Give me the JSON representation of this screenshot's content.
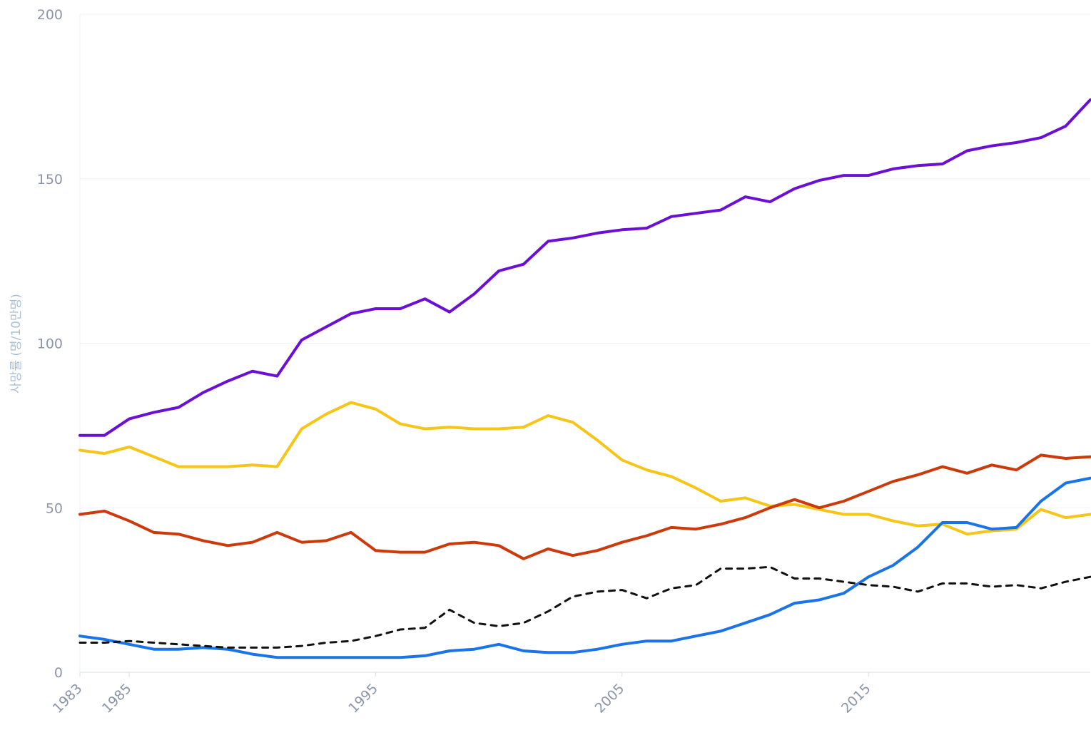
{
  "chart_data": {
    "type": "line",
    "y_label": "사망률 (명/10만명)",
    "x": [
      1983,
      1984,
      1985,
      1986,
      1987,
      1988,
      1989,
      1990,
      1991,
      1992,
      1993,
      1994,
      1995,
      1996,
      1997,
      1998,
      1999,
      2000,
      2001,
      2002,
      2003,
      2004,
      2005,
      2006,
      2007,
      2008,
      2009,
      2010,
      2011,
      2012,
      2013,
      2014,
      2015,
      2016,
      2017,
      2018,
      2019,
      2020,
      2021,
      2022,
      2023,
      2024
    ],
    "xlim": [
      1983,
      2024
    ],
    "xticks": [
      1983,
      1985,
      1995,
      2005,
      2015
    ],
    "ylim": [
      0,
      200
    ],
    "yticks": [
      0,
      50,
      100,
      150,
      200
    ],
    "grid": true,
    "series": [
      {
        "color": "#6a0fd6",
        "dashed": false,
        "values": [
          72,
          72,
          77,
          79,
          80.5,
          85,
          88.5,
          91.5,
          90,
          101,
          105,
          109,
          110.5,
          110.5,
          113.5,
          109.5,
          115,
          122,
          124,
          131,
          132,
          133.5,
          134.5,
          135,
          138.5,
          139.5,
          140.5,
          144.5,
          143,
          147,
          149.5,
          151,
          151,
          153,
          154,
          154.5,
          158.5,
          160,
          161,
          162.5,
          166,
          174
        ]
      },
      {
        "color": "#f5c518",
        "dashed": false,
        "values": [
          67.5,
          66.5,
          68.5,
          65.5,
          62.5,
          62.5,
          62.5,
          63,
          62.5,
          74,
          78.5,
          82,
          80,
          75.5,
          74,
          74.5,
          74,
          74,
          74.5,
          78,
          76,
          70.5,
          64.5,
          61.5,
          59.5,
          56,
          52,
          53,
          50.5,
          51,
          49.5,
          48,
          48,
          46,
          44.5,
          45,
          42,
          43,
          43.5,
          49.5,
          47,
          48
        ]
      },
      {
        "color": "#cc3a0c",
        "dashed": false,
        "values": [
          48,
          49,
          46,
          42.5,
          42,
          40,
          38.5,
          39.5,
          42.5,
          39.5,
          40,
          42.5,
          37,
          36.5,
          36.5,
          39,
          39.5,
          38.5,
          34.5,
          37.5,
          35.5,
          37,
          39.5,
          41.5,
          44,
          43.5,
          45,
          47,
          50,
          52.5,
          50,
          52,
          55,
          58,
          60,
          62.5,
          60.5,
          63,
          61.5,
          66,
          65,
          65.5
        ]
      },
      {
        "color": "#1a73e8",
        "dashed": false,
        "values": [
          11,
          10,
          8.5,
          7,
          7,
          7.5,
          7,
          5.5,
          4.5,
          4.5,
          4.5,
          4.5,
          4.5,
          4.5,
          5,
          6.5,
          7,
          8.5,
          6.5,
          6,
          6,
          7,
          8.5,
          9.5,
          9.5,
          11,
          12.5,
          15,
          17.5,
          21,
          22,
          24,
          29,
          32.5,
          38,
          45.5,
          45.5,
          43.5,
          44,
          52,
          57.5,
          59
        ]
      },
      {
        "color": "#111111",
        "dashed": true,
        "values": [
          9,
          9,
          9.5,
          9,
          8.5,
          8,
          7.5,
          7.5,
          7.5,
          8,
          9,
          9.5,
          11,
          13,
          13.5,
          19,
          15,
          14,
          15,
          18.5,
          23,
          24.5,
          25,
          22.5,
          25.5,
          26.5,
          31.5,
          31.5,
          32,
          28.5,
          28.5,
          27.5,
          26.5,
          26,
          24.5,
          27,
          27,
          26,
          26.5,
          25.5,
          27.5,
          29
        ]
      }
    ]
  }
}
